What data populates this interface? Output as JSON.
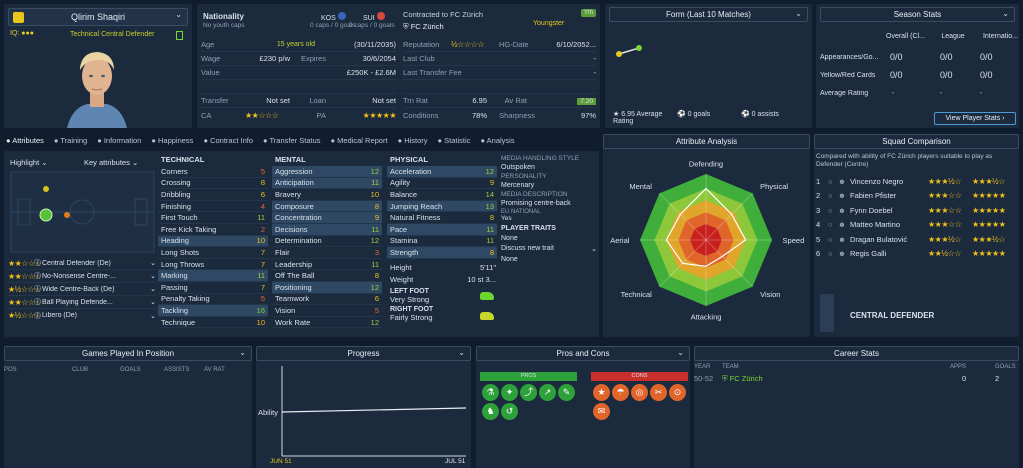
{
  "player": {
    "name": "Qlirim Shaqiri",
    "youth": "No youth caps",
    "role": "Technical Central Defender"
  },
  "nationality": {
    "label": "Nationality",
    "first": "KOS",
    "second": "SUI",
    "first_caps": "0 caps / 0 goals",
    "second_caps": "0 caps / 0 goals"
  },
  "contract": {
    "header": "Contracted to FC Zürich",
    "club": "FC Zürich",
    "status": "Youngster",
    "badge": "Yth"
  },
  "info": [
    {
      "label": "Age",
      "value": "15 years old",
      "extra": "(30/11/2035)",
      "rlabel": "Reputation",
      "rvalue": ""
    },
    {
      "label": "Wage",
      "value": "£230 p/w",
      "extra_label": "Expires",
      "extra": "30/6/2054",
      "rlabel": "HG-Date",
      "rvalue": "6/10/2052..."
    },
    {
      "label": "Value",
      "value": "",
      "extra": "£250K - £2.6M",
      "rlabel": "Last Club",
      "rvalue": "-"
    },
    {
      "label": "",
      "value": "",
      "extra": "",
      "rlabel": "Last Transfer Fee",
      "rvalue": "-"
    },
    {
      "label": "Transfer",
      "value": "Not set",
      "extra_label": "Loan",
      "extra": "Not set",
      "rlabel": "Trn Rat",
      "rvalue": "6.95",
      "r2label": "Av Rat",
      "r2value": "7.20"
    },
    {
      "label": "CA",
      "value": "",
      "extra_label": "PA",
      "extra": "",
      "rlabel": "Conditions",
      "rvalue": "78%",
      "r2label": "Sharpness",
      "r2value": "97%"
    }
  ],
  "form": {
    "title": "Form (Last 10 Matches)",
    "avg": "6.95 Average Rating",
    "goals": "0 goals",
    "assists": "0 assists"
  },
  "season": {
    "title": "Season Stats",
    "cols": [
      "Overall (Cl...",
      "League",
      "Internatio..."
    ],
    "rows": [
      {
        "label": "Appearances/Go...",
        "v": [
          "0/0",
          "0/0",
          "0/0"
        ]
      },
      {
        "label": "Yellow/Red Cards",
        "v": [
          "0/0",
          "0/0",
          "0/0"
        ]
      },
      {
        "label": "Average Rating",
        "v": [
          "-",
          "-",
          "-"
        ]
      }
    ],
    "button": "View Player Stats"
  },
  "tabs": [
    "Attributes",
    "Training",
    "Information",
    "Happiness",
    "Contract Info",
    "Transfer Status",
    "Medical Report",
    "History",
    "Statistic",
    "Analysis"
  ],
  "left": {
    "highlight": "Highlight",
    "key": "Key attributes",
    "positions": [
      {
        "name": "Central Defender (De)",
        "stars": "★★☆☆☆"
      },
      {
        "name": "No-Nonsense Centre-...",
        "stars": "★★☆☆☆"
      },
      {
        "name": "Wide Centre-Back (De)",
        "stars": "★½☆☆☆"
      },
      {
        "name": "Ball Playing Defende...",
        "stars": "★★☆☆☆"
      },
      {
        "name": "Libero (De)",
        "stars": "★½☆☆☆"
      }
    ]
  },
  "technical": {
    "title": "TECHNICAL",
    "items": [
      [
        "Corners",
        "5"
      ],
      [
        "Crossing",
        "8"
      ],
      [
        "Dribbling",
        "6"
      ],
      [
        "Finishing",
        "4"
      ],
      [
        "First Touch",
        "11"
      ],
      [
        "Free Kick Taking",
        "2"
      ],
      [
        "Heading",
        "10"
      ],
      [
        "Long Shots",
        "7"
      ],
      [
        "Long Throws",
        "7"
      ],
      [
        "Marking",
        "11"
      ],
      [
        "Passing",
        "7"
      ],
      [
        "Penalty Taking",
        "5"
      ],
      [
        "Tackling",
        "16"
      ],
      [
        "Technique",
        "10"
      ]
    ]
  },
  "mental": {
    "title": "MENTAL",
    "items": [
      [
        "Aggression",
        "12"
      ],
      [
        "Anticipation",
        "11"
      ],
      [
        "Bravery",
        "10"
      ],
      [
        "Composure",
        "8"
      ],
      [
        "Concentration",
        "9"
      ],
      [
        "Decisions",
        "11"
      ],
      [
        "Determination",
        "12"
      ],
      [
        "Flair",
        "3"
      ],
      [
        "Leadership",
        "11"
      ],
      [
        "Off The Ball",
        "8"
      ],
      [
        "Positioning",
        "12"
      ],
      [
        "Teamwork",
        "6"
      ],
      [
        "Vision",
        "5"
      ],
      [
        "Work Rate",
        "12"
      ]
    ]
  },
  "physical": {
    "title": "PHYSICAL",
    "items": [
      [
        "Acceleration",
        "12"
      ],
      [
        "Agility",
        "9"
      ],
      [
        "Balance",
        "14"
      ],
      [
        "Jumping Reach",
        "13"
      ],
      [
        "Natural Fitness",
        "8"
      ],
      [
        "Pace",
        "11"
      ],
      [
        "Stamina",
        "11"
      ],
      [
        "Strength",
        "8"
      ]
    ],
    "height_label": "Height",
    "height": "5'11\"",
    "weight_label": "Weight",
    "weight": "10 st 3...",
    "left_foot_label": "LEFT FOOT",
    "left_foot": "Very Strong",
    "right_foot_label": "RIGHT FOOT",
    "right_foot": "Fairly Strong"
  },
  "media": {
    "mhs_label": "MEDIA HANDLING STYLE",
    "mhs": "Outspoken",
    "personality_label": "PERSONALITY",
    "personality": "Mercenary",
    "desc_label": "MEDIA DESCRIPTION",
    "desc": "Promising centre-back",
    "eu_label": "EU NATIONAL",
    "eu": "Yes",
    "traits_label": "PLAYER TRAITS",
    "traits": "None",
    "discuss": "Discuss new trait",
    "traits2": "None"
  },
  "analysis": {
    "title": "Attribute Analysis",
    "labels": [
      "Defending",
      "Physical",
      "Speed",
      "Vision",
      "Attacking",
      "Technical",
      "Aerial",
      "Mental"
    ],
    "values": [
      0.78,
      0.55,
      0.6,
      0.35,
      0.4,
      0.5,
      0.6,
      0.55
    ]
  },
  "squad": {
    "title": "Squad Comparison",
    "subtitle": "Compared with ability of FC Zürich players suitable to play as Defender (Centre)",
    "rows": [
      {
        "n": "1",
        "name": "Vincenzo Negro",
        "ca": "★★★½☆",
        "pa": "★★★½☆"
      },
      {
        "n": "2",
        "name": "Fabien Pfister",
        "ca": "★★★☆☆",
        "pa": "★★★★★"
      },
      {
        "n": "3",
        "name": "Fynn Doebel",
        "ca": "★★★☆☆",
        "pa": "★★★★★"
      },
      {
        "n": "4",
        "name": "Matteo Martino",
        "ca": "★★★☆☆",
        "pa": "★★★★★"
      },
      {
        "n": "5",
        "name": "Dragan Bulatović",
        "ca": "★★★½☆",
        "pa": "★★★½☆"
      },
      {
        "n": "6",
        "name": "Regis Galli",
        "ca": "★★½☆☆",
        "pa": "★★★★★"
      }
    ],
    "position": "CENTRAL DEFENDER"
  },
  "games": {
    "title": "Games Played In Position",
    "cols": [
      "POS",
      "CLUB",
      "GOALS",
      "ASSISTS",
      "AV RAT"
    ]
  },
  "progress": {
    "title": "Progress",
    "ability": "Ability",
    "start": "JUN 51",
    "end": "JUL 51"
  },
  "proscons": {
    "title": "Pros and Cons",
    "pros": "PROS",
    "cons": "CONS"
  },
  "career": {
    "title": "Career Stats",
    "cols": [
      "YEAR",
      "TEAM",
      "APPS",
      "GOALS"
    ],
    "rows": [
      {
        "year": "50-52",
        "team": "FC Zürich",
        "apps": "0",
        "goals": "2"
      }
    ]
  },
  "colors": {
    "accent": "#7bd635",
    "star": "#f2c21b",
    "panel": "#1b2a3d"
  }
}
